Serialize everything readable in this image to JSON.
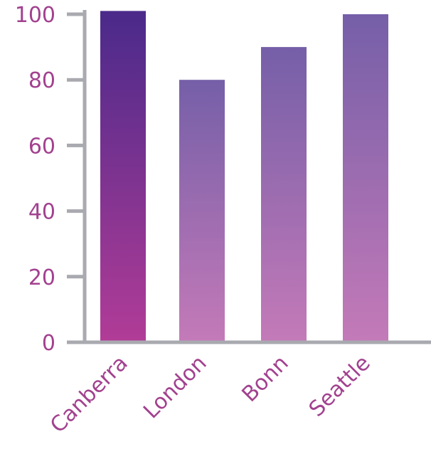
{
  "chart_data": {
    "type": "bar",
    "categories": [
      "Canberra",
      "London",
      "Bonn",
      "Seattle"
    ],
    "values": [
      101,
      80,
      90,
      100
    ],
    "title": "",
    "xlabel": "",
    "ylabel": "",
    "ylim": [
      0,
      100
    ],
    "yticks": [
      "0",
      "20",
      "40",
      "60",
      "80",
      "100"
    ],
    "grid": false,
    "legend": "none"
  },
  "colors": {
    "axis": "#a9a9b0",
    "label": "#a2418f",
    "bar_gradients": [
      [
        "#4a2a8a",
        "#b13c97"
      ],
      [
        "#755fa8",
        "#c47ab8"
      ],
      [
        "#755fa8",
        "#c47ab8"
      ],
      [
        "#755fa8",
        "#c47ab8"
      ]
    ]
  }
}
